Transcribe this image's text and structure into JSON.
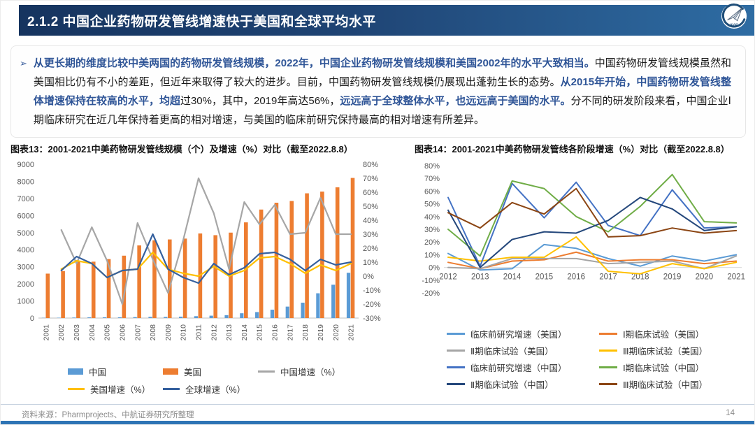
{
  "header": {
    "title": "2.1.2 中国企业药物研发管线增速快于美国和全球平均水平",
    "logo_text": "AVIC"
  },
  "summary": {
    "bullet": "➢",
    "segments": [
      {
        "text": "从更长期的维度比较中美两国的药物研发管线规模，2022年，中国企业药物研发管线规模和美国2002年的水平大致相当。",
        "em": true
      },
      {
        "text": "中国药物研发管线规模虽然和美国相比仍有不小的差距，但近年来取得了较大的进步。目前，中国药物研发管线规模仍展现出蓬勃生长的态势。",
        "em": false
      },
      {
        "text": "从2015年开始，中国药物研发管线整体增速保持在较高的水平，均超",
        "em": true
      },
      {
        "text": "过30%，其中，2019年高达56%，",
        "em": false
      },
      {
        "text": "远远高于全球整体水平，也远远高于美国的水平。",
        "em": true
      },
      {
        "text": "分不同的研发阶段来看，中国企业Ⅰ期临床研究在近几年保持着更高的相对增速，与美国的临床前研究保持最高的相对增速有所差异。",
        "em": false
      }
    ]
  },
  "chart_data": [
    {
      "type": "combo-bar-line",
      "title": "图表13：2001-2021中美药物研发管线规模（个）及增速（%）对比（截至2022.8.8）",
      "categories": [
        "2001",
        "2002",
        "2003",
        "2004",
        "2005",
        "2006",
        "2007",
        "2008",
        "2009",
        "2010",
        "2011",
        "2012",
        "2013",
        "2014",
        "2015",
        "2016",
        "2017",
        "2018",
        "2019",
        "2020",
        "2021"
      ],
      "left_axis": {
        "min": 0,
        "max": 9000,
        "step": 1000
      },
      "right_axis": {
        "min": -30,
        "max": 80,
        "step": 10,
        "suffix": "%"
      },
      "bar_series": [
        {
          "name": "中国",
          "color": "#5B9BD5",
          "values": [
            15,
            20,
            30,
            40,
            45,
            45,
            55,
            70,
            65,
            80,
            110,
            140,
            170,
            280,
            350,
            490,
            670,
            900,
            1450,
            1950,
            2650
          ]
        },
        {
          "name": "美国",
          "color": "#ED7D31",
          "values": [
            2600,
            2750,
            3300,
            3300,
            3450,
            3650,
            4250,
            4550,
            4600,
            4650,
            4950,
            4850,
            5000,
            5600,
            6350,
            6750,
            6850,
            7300,
            7400,
            7650,
            8200
          ]
        }
      ],
      "line_series": [
        {
          "name": "中国增速（%）",
          "color": "#A6A6A6",
          "values": [
            null,
            33,
            9,
            35,
            11,
            -20,
            38,
            12,
            -12,
            26,
            70,
            45,
            5,
            53,
            37,
            51,
            30,
            31,
            56,
            30,
            30
          ]
        },
        {
          "name": "美国增速（%）",
          "color": "#FFC000",
          "values": [
            null,
            5,
            11,
            9,
            -1,
            4,
            5,
            17,
            5,
            2,
            0,
            7,
            0,
            4,
            13,
            14,
            9,
            2,
            8,
            4,
            9
          ]
        },
        {
          "name": "全球增速（%）",
          "color": "#35609E",
          "values": [
            null,
            4,
            14,
            9,
            -1,
            4,
            5,
            30,
            5,
            -1,
            -5,
            9,
            1,
            6,
            16,
            17,
            12,
            4,
            12,
            8,
            10
          ]
        }
      ],
      "legend_rows": [
        [
          {
            "name": "中国",
            "swatch": "bar",
            "color": "#5B9BD5"
          },
          {
            "name": "美国",
            "swatch": "bar",
            "color": "#ED7D31"
          },
          {
            "name": "中国增速（%）",
            "swatch": "line",
            "color": "#A6A6A6"
          }
        ],
        [
          {
            "name": "美国增速（%）",
            "swatch": "line",
            "color": "#FFC000"
          },
          {
            "name": "全球增速（%）",
            "swatch": "line",
            "color": "#35609E"
          }
        ]
      ]
    },
    {
      "type": "line",
      "title": "图表14：2001-2021中美药物研发管线各阶段增速（%）对比（截至2022.8.8）",
      "categories": [
        "2012",
        "2013",
        "2014",
        "2015",
        "2016",
        "2017",
        "2018",
        "2019",
        "2020",
        "2021"
      ],
      "y_axis": {
        "min": -20,
        "max": 80,
        "step": 10,
        "suffix": "%"
      },
      "series": [
        {
          "name": "临床前研究增速（美国）",
          "color": "#5B9BD5",
          "values": [
            11,
            -2,
            -1,
            18,
            15,
            7,
            1,
            9,
            5,
            10
          ]
        },
        {
          "name": "Ⅰ期临床试验（美国）",
          "color": "#ED7D31",
          "values": [
            4,
            -1,
            5,
            6,
            12,
            5,
            6,
            6,
            3,
            5
          ]
        },
        {
          "name": "Ⅱ期临床试验（美国）",
          "color": "#A5A5A5",
          "values": [
            0,
            -1,
            7,
            7,
            7,
            3,
            4,
            5,
            -1,
            9
          ]
        },
        {
          "name": "Ⅲ期临床试验（美国）",
          "color": "#FFC000",
          "values": [
            8,
            5,
            8,
            8,
            24,
            -3,
            -5,
            3,
            -1,
            4
          ]
        },
        {
          "name": "临床前研究增速（中国）",
          "color": "#4472C4",
          "values": [
            55,
            1,
            66,
            39,
            67,
            33,
            25,
            61,
            31,
            32
          ]
        },
        {
          "name": "Ⅰ期临床试验（中国）",
          "color": "#70AD47",
          "values": [
            30,
            9,
            68,
            62,
            40,
            28,
            48,
            73,
            36,
            35
          ]
        },
        {
          "name": "Ⅱ期临床试验（中国）",
          "color": "#24477B",
          "values": [
            45,
            0,
            22,
            28,
            27,
            37,
            55,
            46,
            29,
            32
          ]
        },
        {
          "name": "Ⅲ期临床试验（中国）",
          "color": "#8B4513",
          "values": [
            43,
            31,
            51,
            42,
            62,
            24,
            25,
            31,
            27,
            29
          ]
        }
      ]
    }
  ],
  "footer": {
    "source": "资料来源：Pharmprojects、中航证券研究所整理",
    "page": "14"
  },
  "colors": {
    "accent_blue": "#2F5597",
    "header_dark": "#16345f",
    "header_light": "#2e6ca3",
    "bottom_bar": "#2E74B5"
  }
}
